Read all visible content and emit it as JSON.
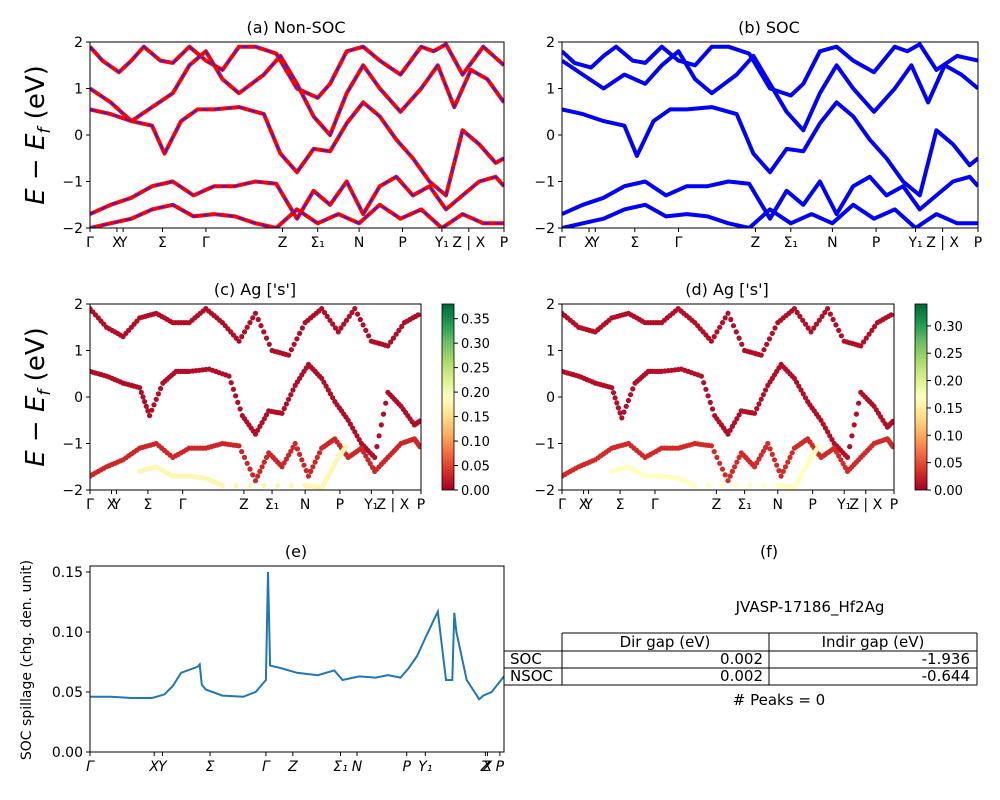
{
  "figure": {
    "ylabel_energy": "E − E_f (eV)",
    "colors": {
      "nonsoc_line": "#ff0000",
      "nonsoc_dash": "#2020ff",
      "soc_line": "#0000ff",
      "spillage_line": "#1f77b4"
    }
  },
  "chart_data": [
    {
      "id": "a",
      "type": "line",
      "title": "(a) Non-SOC",
      "ylabel": "E − E_f (eV)",
      "ylim": [
        -2,
        2
      ],
      "yticks": [
        "2",
        "1",
        "0",
        "−1",
        "−2"
      ],
      "xticks": [
        "Γ",
        "X",
        "Y",
        "Σ",
        "Γ",
        "Z",
        "Σ₁",
        "N",
        "P",
        "Y₁",
        "Z | X",
        "P"
      ],
      "series": [
        {
          "x": [
            0,
            0.3,
            0.7,
            1.0,
            1.3,
            1.7,
            2.0,
            2.4,
            2.8,
            3.2,
            3.6,
            4.0,
            4.5,
            5.0,
            5.5,
            5.8,
            6.2,
            6.6,
            7.0,
            7.5,
            8.0,
            8.3,
            8.6,
            9.0,
            9.5,
            10.0
          ],
          "y": [
            1.9,
            1.6,
            1.35,
            1.6,
            1.9,
            1.6,
            1.55,
            1.9,
            1.6,
            1.4,
            1.9,
            1.9,
            1.75,
            1.0,
            0.8,
            1.1,
            1.8,
            1.9,
            1.6,
            1.3,
            1.9,
            1.8,
            1.95,
            1.3,
            1.9,
            1.5
          ]
        },
        {
          "x": [
            0,
            0.5,
            1.0,
            1.5,
            2.0,
            2.4,
            2.8,
            3.2,
            3.6,
            4.2,
            4.6,
            5.0,
            5.4,
            5.8,
            6.2,
            6.6,
            7.0,
            7.5,
            8.0,
            8.4,
            8.8,
            9.2,
            9.6,
            10.0
          ],
          "y": [
            1.0,
            0.7,
            0.3,
            0.6,
            0.9,
            1.5,
            1.8,
            1.2,
            0.9,
            1.3,
            1.7,
            1.1,
            0.4,
            0.0,
            0.9,
            1.5,
            1.0,
            0.5,
            1.0,
            1.5,
            0.6,
            1.4,
            1.2,
            0.7
          ]
        },
        {
          "x": [
            0,
            0.5,
            1.0,
            1.5,
            1.8,
            2.2,
            2.6,
            3.0,
            3.6,
            4.2,
            4.6,
            5.0,
            5.4,
            5.8,
            6.2,
            6.6,
            7.0,
            7.4,
            7.8,
            8.2,
            8.6,
            9.0,
            9.4,
            9.8,
            10.0
          ],
          "y": [
            0.55,
            0.45,
            0.3,
            0.2,
            -0.4,
            0.3,
            0.55,
            0.55,
            0.6,
            0.45,
            -0.4,
            -0.8,
            -0.3,
            -0.35,
            0.25,
            0.7,
            0.4,
            -0.1,
            -0.5,
            -1.0,
            -1.3,
            0.1,
            -0.2,
            -0.6,
            -0.5
          ]
        },
        {
          "x": [
            0,
            0.5,
            1.0,
            1.5,
            2.0,
            2.5,
            3.0,
            3.5,
            4.0,
            4.5,
            5.0,
            5.4,
            5.8,
            6.2,
            6.6,
            7.0,
            7.4,
            7.8,
            8.2,
            8.6,
            9.0,
            9.4,
            9.8,
            10.0
          ],
          "y": [
            -1.7,
            -1.5,
            -1.35,
            -1.1,
            -1.0,
            -1.3,
            -1.1,
            -1.1,
            -1.0,
            -1.05,
            -1.8,
            -1.2,
            -1.5,
            -1.0,
            -1.7,
            -1.1,
            -0.9,
            -1.3,
            -1.1,
            -1.6,
            -1.3,
            -1.0,
            -0.9,
            -1.1
          ]
        },
        {
          "x": [
            0,
            0.5,
            1.0,
            1.5,
            2.0,
            2.5,
            3.0,
            3.5,
            4.0,
            4.5,
            5.0,
            5.5,
            6.0,
            6.5,
            7.0,
            7.5,
            8.0,
            8.5,
            9.0,
            9.5,
            10.0
          ],
          "y": [
            -2.0,
            -1.9,
            -1.8,
            -1.6,
            -1.5,
            -1.75,
            -1.7,
            -1.75,
            -1.9,
            -2.0,
            -1.6,
            -1.9,
            -1.7,
            -1.9,
            -1.5,
            -1.8,
            -1.6,
            -2.0,
            -1.7,
            -1.9,
            -1.9
          ]
        }
      ]
    },
    {
      "id": "b",
      "type": "line",
      "title": "(b) SOC",
      "ylim": [
        -2,
        2
      ],
      "yticks": [
        "2",
        "1",
        "0",
        "−1",
        "−2"
      ],
      "xticks": [
        "Γ",
        "X",
        "Y",
        "Σ",
        "Γ",
        "Z",
        "Σ₁",
        "N",
        "P",
        "Y₁",
        "Z | X",
        "P"
      ],
      "series": [
        {
          "x": [
            0,
            0.3,
            0.7,
            1.0,
            1.3,
            1.7,
            2.0,
            2.4,
            2.8,
            3.2,
            3.6,
            4.0,
            4.5,
            5.0,
            5.5,
            5.8,
            6.2,
            6.6,
            7.0,
            7.5,
            8.0,
            8.3,
            8.6,
            9.0,
            9.5,
            10.0
          ],
          "y": [
            1.8,
            1.55,
            1.45,
            1.7,
            1.9,
            1.6,
            1.55,
            1.9,
            1.6,
            1.5,
            1.9,
            1.9,
            1.75,
            1.0,
            0.85,
            1.1,
            1.8,
            1.9,
            1.6,
            1.35,
            1.9,
            1.8,
            1.95,
            1.4,
            1.7,
            1.6
          ]
        },
        {
          "x": [
            0,
            0.5,
            1.0,
            1.5,
            2.0,
            2.4,
            2.8,
            3.2,
            3.6,
            4.2,
            4.6,
            5.0,
            5.4,
            5.8,
            6.2,
            6.6,
            7.0,
            7.5,
            8.0,
            8.4,
            8.8,
            9.2,
            9.6,
            10.0
          ],
          "y": [
            1.6,
            1.3,
            1.0,
            1.3,
            1.1,
            1.5,
            1.8,
            1.2,
            0.9,
            1.3,
            1.7,
            1.1,
            0.5,
            0.1,
            0.9,
            1.5,
            1.0,
            0.5,
            1.0,
            1.5,
            0.7,
            1.5,
            1.3,
            1.0
          ]
        },
        {
          "x": [
            0,
            0.5,
            1.0,
            1.5,
            1.8,
            2.2,
            2.6,
            3.0,
            3.6,
            4.2,
            4.6,
            5.0,
            5.4,
            5.8,
            6.2,
            6.6,
            7.0,
            7.4,
            7.8,
            8.2,
            8.6,
            9.0,
            9.4,
            9.8,
            10.0
          ],
          "y": [
            0.55,
            0.45,
            0.3,
            0.2,
            -0.45,
            0.3,
            0.55,
            0.55,
            0.6,
            0.45,
            -0.4,
            -0.8,
            -0.3,
            -0.35,
            0.25,
            0.7,
            0.4,
            -0.1,
            -0.5,
            -1.0,
            -1.3,
            0.1,
            -0.2,
            -0.65,
            -0.5
          ]
        },
        {
          "x": [
            0,
            0.5,
            1.0,
            1.5,
            2.0,
            2.5,
            3.0,
            3.5,
            4.0,
            4.5,
            5.0,
            5.4,
            5.8,
            6.2,
            6.6,
            7.0,
            7.4,
            7.8,
            8.2,
            8.6,
            9.0,
            9.4,
            9.8,
            10.0
          ],
          "y": [
            -1.7,
            -1.5,
            -1.35,
            -1.1,
            -1.0,
            -1.3,
            -1.1,
            -1.1,
            -1.0,
            -1.05,
            -1.8,
            -1.2,
            -1.5,
            -1.0,
            -1.7,
            -1.1,
            -0.9,
            -1.3,
            -1.1,
            -1.6,
            -1.3,
            -1.0,
            -0.9,
            -1.1
          ]
        },
        {
          "x": [
            0,
            0.5,
            1.0,
            1.5,
            2.0,
            2.5,
            3.0,
            3.5,
            4.0,
            4.5,
            5.0,
            5.5,
            6.0,
            6.5,
            7.0,
            7.5,
            8.0,
            8.5,
            9.0,
            9.5,
            10.0
          ],
          "y": [
            -2.0,
            -1.9,
            -1.8,
            -1.6,
            -1.5,
            -1.75,
            -1.7,
            -1.75,
            -1.9,
            -2.0,
            -1.6,
            -1.9,
            -1.7,
            -1.9,
            -1.5,
            -1.8,
            -1.6,
            -2.0,
            -1.7,
            -1.9,
            -1.9
          ]
        }
      ]
    },
    {
      "id": "c",
      "type": "scatter",
      "title": "(c)  Ag ['s']",
      "ylabel": "E − E_f (eV)",
      "ylim": [
        -2,
        2
      ],
      "yticks": [
        "2",
        "1",
        "0",
        "−1",
        "−2"
      ],
      "xticks": [
        "Γ",
        "X",
        "Y",
        "Σ",
        "Γ",
        "Z",
        "Σ₁",
        "N",
        "P",
        "Y₁",
        "Z | X",
        "P"
      ],
      "colorbar": {
        "min": 0.0,
        "max": 0.38,
        "ticks": [
          "0.00",
          "0.05",
          "0.10",
          "0.15",
          "0.20",
          "0.25",
          "0.30",
          "0.35"
        ]
      },
      "series": [
        {
          "x": [
            0,
            0.5,
            1.0,
            1.5,
            2.0,
            2.5,
            3.0,
            3.5,
            4.0,
            4.5,
            5.0,
            5.5,
            6.0,
            6.5,
            7.0,
            7.5,
            8.0,
            8.5,
            9.0,
            9.5,
            10.0
          ],
          "y": [
            1.9,
            1.5,
            1.3,
            1.7,
            1.8,
            1.6,
            1.6,
            1.9,
            1.6,
            1.2,
            1.8,
            1.0,
            0.9,
            1.6,
            1.9,
            1.4,
            1.9,
            1.2,
            1.1,
            1.6,
            1.8
          ],
          "w": 0.01
        },
        {
          "x": [
            0,
            0.5,
            1.0,
            1.5,
            1.8,
            2.2,
            2.6,
            3.0,
            3.6,
            4.2,
            4.6,
            5.0,
            5.4,
            5.8,
            6.2,
            6.6,
            7.0,
            7.4,
            7.8,
            8.2,
            8.6,
            9.0,
            9.4,
            9.8,
            10.0
          ],
          "y": [
            0.55,
            0.45,
            0.3,
            0.2,
            -0.4,
            0.3,
            0.55,
            0.55,
            0.6,
            0.45,
            -0.4,
            -0.8,
            -0.3,
            -0.35,
            0.25,
            0.7,
            0.4,
            -0.1,
            -0.5,
            -1.0,
            -1.3,
            0.1,
            -0.2,
            -0.6,
            -0.5
          ],
          "w": 0.01
        },
        {
          "x": [
            0,
            0.5,
            1.0,
            1.5,
            2.0,
            2.5,
            3.0,
            3.5,
            4.0,
            4.5,
            5.0,
            5.4,
            5.8,
            6.2,
            6.6,
            7.0,
            7.4,
            7.8,
            8.2,
            8.6,
            9.0,
            9.4,
            9.8,
            10.0
          ],
          "y": [
            -1.7,
            -1.5,
            -1.35,
            -1.1,
            -1.0,
            -1.3,
            -1.1,
            -1.1,
            -1.0,
            -1.05,
            -1.8,
            -1.2,
            -1.5,
            -1.0,
            -1.7,
            -1.1,
            -0.9,
            -1.3,
            -1.1,
            -1.6,
            -1.3,
            -1.0,
            -0.9,
            -1.1
          ],
          "w": 0.03
        },
        {
          "x": [
            1.5,
            2.0,
            2.5,
            3.0,
            3.5,
            4.0,
            6.5,
            7.0,
            7.2,
            7.5,
            7.8
          ],
          "y": [
            -1.6,
            -1.5,
            -1.7,
            -1.7,
            -1.75,
            -1.9,
            -1.9,
            -1.95,
            -1.7,
            -1.3,
            -1.0
          ],
          "w": 0.18
        }
      ]
    },
    {
      "id": "d",
      "type": "scatter",
      "title": "(d) Ag ['s']",
      "ylim": [
        -2,
        2
      ],
      "yticks": [
        "2",
        "1",
        "0",
        "−1",
        "−2"
      ],
      "xticks": [
        "Γ",
        "X",
        "Y",
        "Σ",
        "Γ",
        "Z",
        "Σ₁",
        "N",
        "P",
        "Y₁",
        "Z | X",
        "P"
      ],
      "colorbar": {
        "min": 0.0,
        "max": 0.34,
        "ticks": [
          "0.00",
          "0.05",
          "0.10",
          "0.15",
          "0.20",
          "0.25",
          "0.30"
        ]
      },
      "series": [
        {
          "x": [
            0,
            0.5,
            1.0,
            1.5,
            2.0,
            2.5,
            3.0,
            3.5,
            4.0,
            4.5,
            5.0,
            5.5,
            6.0,
            6.5,
            7.0,
            7.5,
            8.0,
            8.5,
            9.0,
            9.5,
            10.0
          ],
          "y": [
            1.8,
            1.5,
            1.4,
            1.7,
            1.8,
            1.6,
            1.6,
            1.9,
            1.6,
            1.2,
            1.8,
            1.0,
            0.9,
            1.6,
            1.9,
            1.4,
            1.9,
            1.2,
            1.1,
            1.6,
            1.8
          ],
          "w": 0.01
        },
        {
          "x": [
            0,
            0.5,
            1.0,
            1.5,
            1.8,
            2.2,
            2.6,
            3.0,
            3.6,
            4.2,
            4.6,
            5.0,
            5.4,
            5.8,
            6.2,
            6.6,
            7.0,
            7.4,
            7.8,
            8.2,
            8.6,
            9.0,
            9.4,
            9.8,
            10.0
          ],
          "y": [
            0.55,
            0.45,
            0.3,
            0.2,
            -0.45,
            0.3,
            0.55,
            0.55,
            0.6,
            0.45,
            -0.4,
            -0.8,
            -0.3,
            -0.35,
            0.25,
            0.7,
            0.4,
            -0.1,
            -0.5,
            -1.0,
            -1.3,
            0.1,
            -0.2,
            -0.65,
            -0.5
          ],
          "w": 0.01
        },
        {
          "x": [
            0,
            0.5,
            1.0,
            1.5,
            2.0,
            2.5,
            3.0,
            3.5,
            4.0,
            4.5,
            5.0,
            5.4,
            5.8,
            6.2,
            6.6,
            7.0,
            7.4,
            7.8,
            8.2,
            8.6,
            9.0,
            9.4,
            9.8,
            10.0
          ],
          "y": [
            -1.7,
            -1.5,
            -1.35,
            -1.1,
            -1.0,
            -1.3,
            -1.1,
            -1.1,
            -1.0,
            -1.05,
            -1.8,
            -1.2,
            -1.5,
            -1.0,
            -1.7,
            -1.1,
            -0.9,
            -1.3,
            -1.1,
            -1.6,
            -1.3,
            -1.0,
            -0.9,
            -1.1
          ],
          "w": 0.03
        },
        {
          "x": [
            1.5,
            2.0,
            2.5,
            3.0,
            3.5,
            4.0,
            6.5,
            7.0,
            7.2,
            7.5,
            7.8
          ],
          "y": [
            -1.6,
            -1.5,
            -1.7,
            -1.7,
            -1.75,
            -1.9,
            -1.9,
            -1.95,
            -1.7,
            -1.3,
            -1.0
          ],
          "w": 0.17
        }
      ]
    },
    {
      "id": "e",
      "type": "line",
      "title": "(e)",
      "ylabel": "SOC spillage (chg. den. unit)",
      "ylim": [
        0,
        0.155
      ],
      "yticks": [
        "0.00",
        "0.05",
        "0.10",
        "0.15"
      ],
      "xticks": [
        "Γ",
        "X",
        "Y",
        "Σ",
        "Γ",
        "Z",
        "Σ₁",
        "N",
        "P",
        "Y₁",
        "Z",
        "X",
        "P"
      ],
      "x": [
        0,
        0.5,
        1.0,
        1.5,
        1.8,
        2.0,
        2.2,
        2.6,
        2.65,
        2.7,
        2.8,
        3.2,
        3.7,
        4.0,
        4.25,
        4.3,
        4.35,
        4.6,
        5.0,
        5.5,
        5.9,
        6.1,
        6.5,
        6.9,
        7.2,
        7.5,
        7.7,
        7.9,
        8.1,
        8.4,
        8.6,
        8.75,
        8.8,
        8.85,
        9.1,
        9.4,
        9.5,
        9.7,
        10.0
      ],
      "y": [
        0.046,
        0.046,
        0.045,
        0.045,
        0.048,
        0.055,
        0.066,
        0.071,
        0.073,
        0.056,
        0.052,
        0.047,
        0.046,
        0.05,
        0.06,
        0.15,
        0.072,
        0.07,
        0.066,
        0.064,
        0.068,
        0.06,
        0.063,
        0.062,
        0.064,
        0.062,
        0.07,
        0.08,
        0.095,
        0.117,
        0.06,
        0.06,
        0.116,
        0.1,
        0.06,
        0.044,
        0.047,
        0.05,
        0.063
      ]
    }
  ],
  "panel_f": {
    "title": "(f)",
    "material": "JVASP-17186_Hf2Ag",
    "table": {
      "headers": [
        "",
        "Dir gap (eV)",
        "Indir gap (eV)"
      ],
      "rows": [
        [
          "SOC",
          "0.002",
          "-1.936"
        ],
        [
          "NSOC",
          "0.002",
          "-0.644"
        ]
      ]
    },
    "peaks": "# Peaks = 0"
  }
}
